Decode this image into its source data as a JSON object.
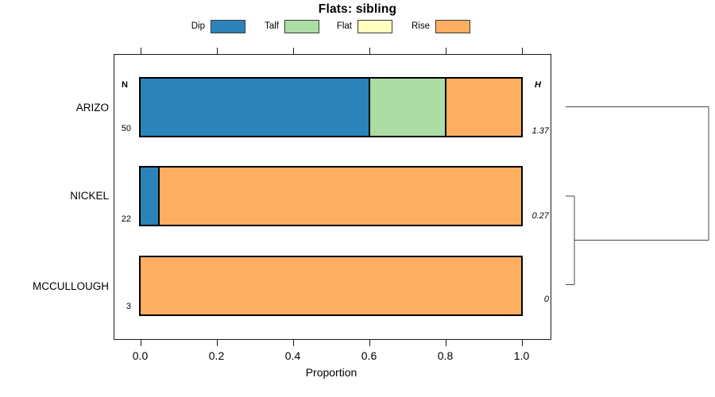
{
  "title": "Flats: sibling",
  "legend": {
    "items": [
      {
        "label": "Dip",
        "color": "#2B83BA"
      },
      {
        "label": "Talf",
        "color": "#ABDDA4"
      },
      {
        "label": "Flat",
        "color": "#FFFFBF"
      },
      {
        "label": "Rise",
        "color": "#FDAE61"
      }
    ]
  },
  "columns": {
    "n_header": "N",
    "h_header": "H"
  },
  "axis": {
    "label": "Proportion",
    "ticks": [
      "0.0",
      "0.2",
      "0.4",
      "0.6",
      "0.8",
      "1.0"
    ]
  },
  "chart_data": {
    "type": "bar",
    "orientation": "horizontal",
    "stacked": true,
    "title": "Flats: sibling",
    "xlabel": "Proportion",
    "xlim": [
      0,
      1
    ],
    "grid": false,
    "legend_position": "top",
    "categories": [
      "ARIZO",
      "NICKEL",
      "MCCULLOUGH"
    ],
    "n_values": [
      "50",
      "22",
      "3"
    ],
    "h_values": [
      "1.37",
      "0.27",
      "0"
    ],
    "series": [
      {
        "name": "Dip",
        "color": "#2B83BA",
        "values": [
          0.6,
          0.045,
          0.0
        ]
      },
      {
        "name": "Talf",
        "color": "#ABDDA4",
        "values": [
          0.2,
          0.0,
          0.0
        ]
      },
      {
        "name": "Flat",
        "color": "#FFFFBF",
        "values": [
          0.0,
          0.0,
          0.0
        ]
      },
      {
        "name": "Rise",
        "color": "#FDAE61",
        "values": [
          0.2,
          0.955,
          1.0
        ]
      }
    ],
    "dendrogram": {
      "merges": [
        {
          "clusters": [
            "NICKEL",
            "MCCULLOUGH"
          ],
          "relative_height": 0.06
        },
        {
          "clusters": [
            "ARIZO",
            "(NICKEL,MCCULLOUGH)"
          ],
          "relative_height": 1.0
        }
      ]
    }
  }
}
